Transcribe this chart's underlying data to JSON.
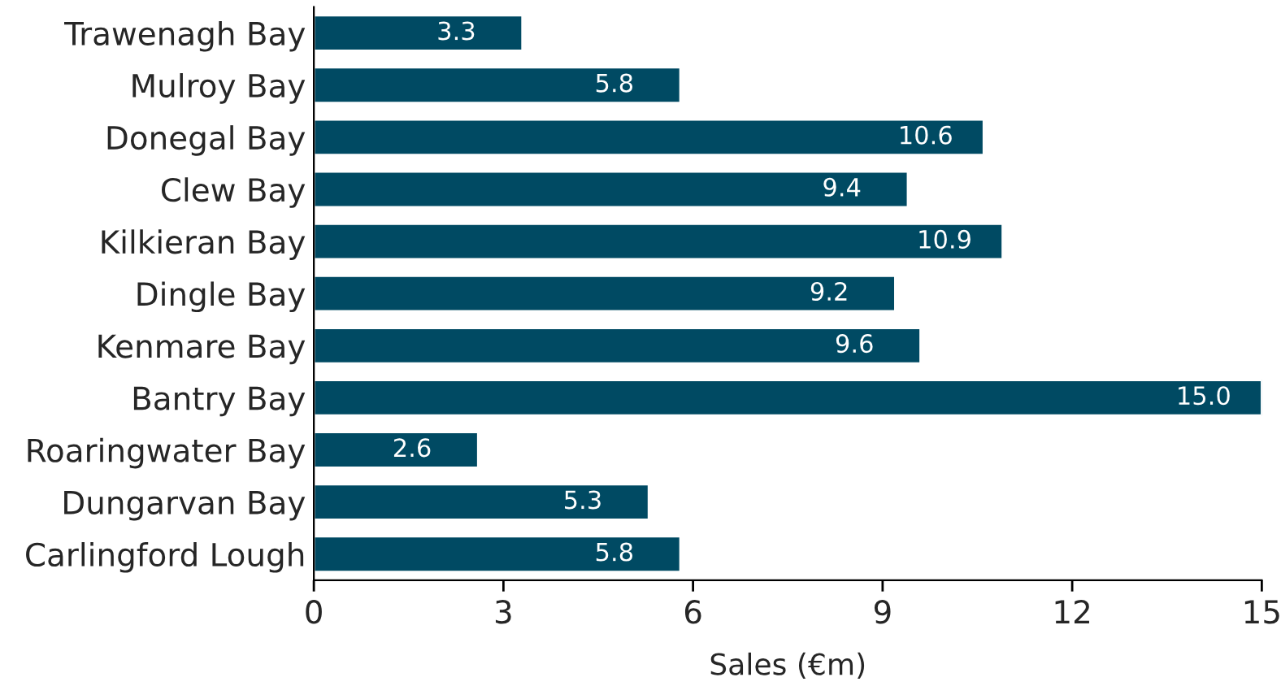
{
  "chart_data": {
    "type": "bar",
    "orientation": "horizontal",
    "xlabel": "Sales (€m)",
    "categories": [
      "Trawenagh Bay",
      "Mulroy Bay",
      "Donegal Bay",
      "Clew Bay",
      "Kilkieran Bay",
      "Dingle Bay",
      "Kenmare Bay",
      "Bantry Bay",
      "Roaringwater Bay",
      "Dungarvan Bay",
      "Carlingford Lough"
    ],
    "values": [
      3.3,
      5.8,
      10.6,
      9.4,
      10.9,
      9.2,
      9.6,
      15.0,
      2.6,
      5.3,
      5.8
    ],
    "value_labels": [
      "3.3",
      "5.8",
      "10.6",
      "9.4",
      "10.9",
      "9.2",
      "9.6",
      "15.0",
      "2.6",
      "5.3",
      "5.8"
    ],
    "color": "#004a63",
    "xlim": [
      0,
      15
    ],
    "xticks": [
      0,
      3,
      6,
      9,
      12,
      15
    ],
    "grid": false,
    "legend": false
  }
}
